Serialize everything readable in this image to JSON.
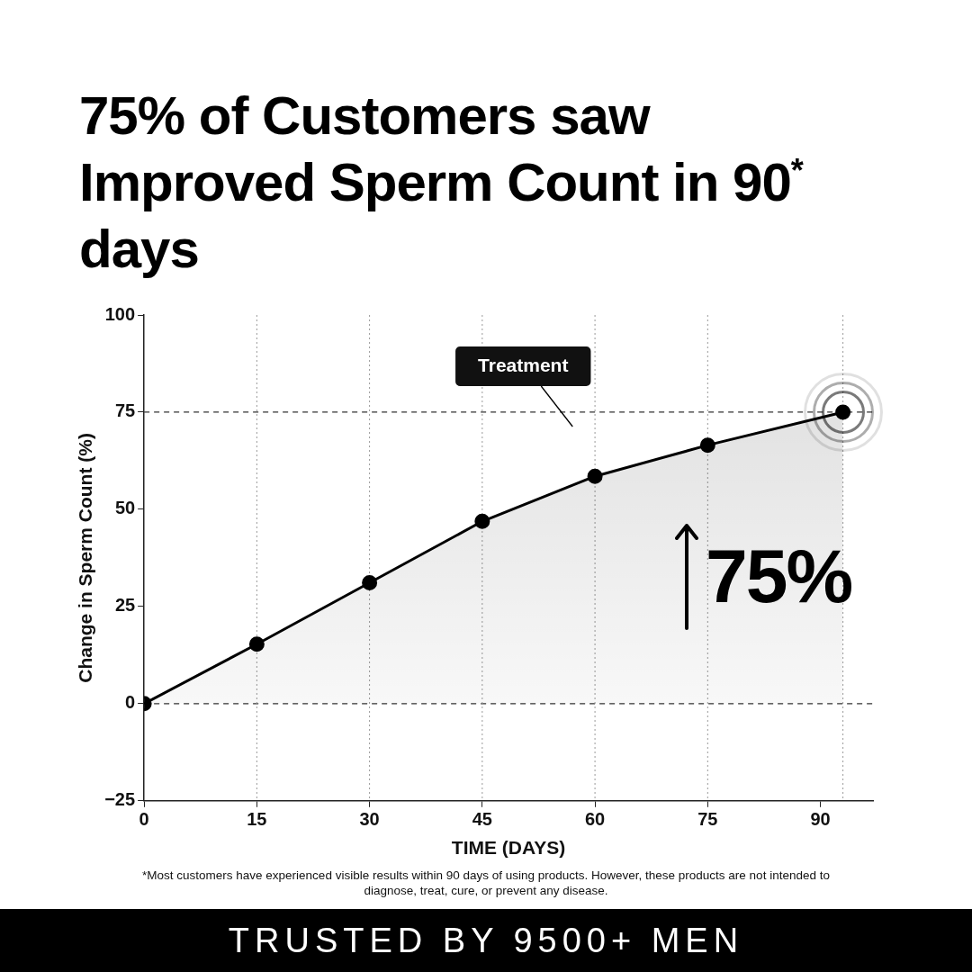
{
  "chart_data": {
    "type": "area",
    "title": "75% of Customers saw Improved Sperm Count in 90$^{*}$ days",
    "xlabel": "TIME (DAYS)",
    "ylabel": "Change in Sperm Count (%)",
    "x": [
      0,
      15,
      30,
      45,
      60,
      75,
      93
    ],
    "series": [
      {
        "color": "#000000",
        "values": [
          0,
          15.3,
          31.1,
          46.9,
          58.5,
          66.5,
          75
        ]
      }
    ],
    "xlim": [
      0,
      97
    ],
    "xticks": [
      0,
      15,
      30,
      45,
      60,
      75,
      90
    ],
    "ylim": [
      -25,
      100
    ],
    "yticks": [
      -25,
      0,
      25,
      50,
      75,
      100
    ],
    "ref_lines": [
      {
        "axis": "y",
        "value": 0,
        "line_style": "dashed"
      },
      {
        "axis": "y",
        "value": 75,
        "line_style": "dashed"
      },
      {
        "axis": "x",
        "value": 15,
        "line_style": "dotted",
        "color": "#9a9a9a"
      },
      {
        "axis": "x",
        "value": 30,
        "line_style": "dotted",
        "color": "#9a9a9a"
      },
      {
        "axis": "x",
        "value": 45,
        "line_style": "dotted",
        "color": "#9a9a9a"
      },
      {
        "axis": "x",
        "value": 60,
        "line_style": "dotted",
        "color": "#9a9a9a"
      },
      {
        "axis": "x",
        "value": 75,
        "line_style": "dotted",
        "color": "#9a9a9a"
      },
      {
        "axis": "x",
        "value": 93,
        "line_style": "dotted",
        "color": "#9a9a9a"
      }
    ],
    "annotations": [
      "Treatment",
      "75%",
      "*Most customers have experienced visible results within 90 days of using products. However, these products are not intended to diagnose, treat, cure, or prevent any disease.",
      "TRUSTED BY 9500+ MEN"
    ],
    "marker": "circle",
    "line_style": "solid",
    "grid": false,
    "legend": false
  }
}
